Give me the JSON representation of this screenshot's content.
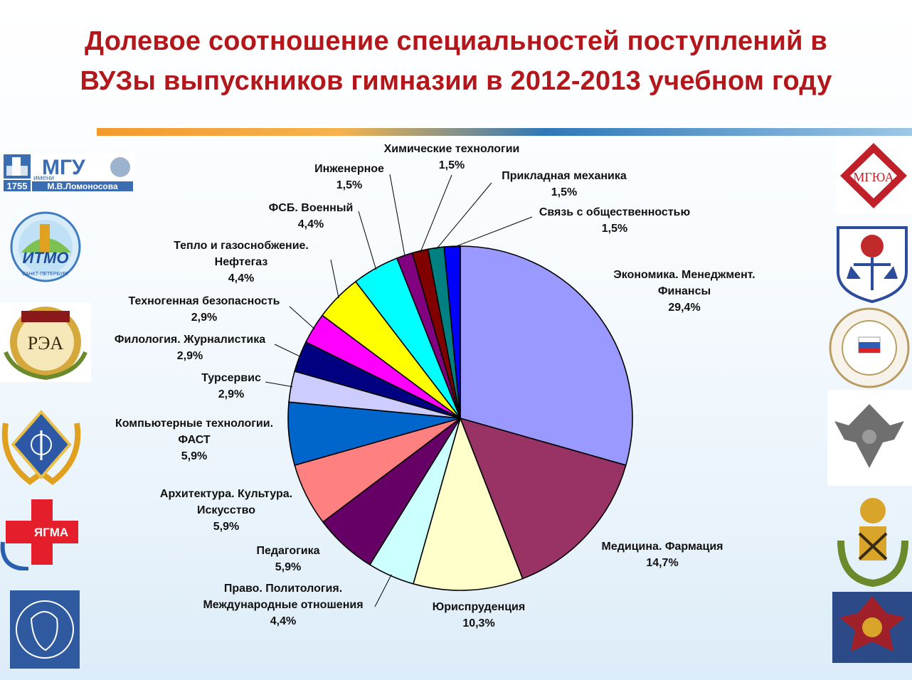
{
  "title": {
    "line1": "Долевое соотношение специальностей поступлений в",
    "line2": "ВУЗы выпускников гимназии в 2012-2013 учебном году"
  },
  "colors": {
    "title": "#b3171b"
  },
  "logos_left": [
    {
      "name": "msu-logo",
      "text": "МГУ",
      "sub": "имени",
      "sub2": "М.В.Ломоносова",
      "year": "1755"
    },
    {
      "name": "itmo-logo",
      "text": "ИТМО",
      "sub": "САНКТ-ПЕТЕРБУРГ"
    },
    {
      "name": "plekhanov-logo",
      "text": "РЭА"
    },
    {
      "name": "medical-academy-logo",
      "text": ""
    },
    {
      "name": "yagma-logo",
      "text": "ЯГМА"
    },
    {
      "name": "pushkin-logo",
      "text": ""
    }
  ],
  "logos_right": [
    {
      "name": "mgyua-logo",
      "text": "МГЮА"
    },
    {
      "name": "law-institute-logo",
      "text": ""
    },
    {
      "name": "finance-university-logo",
      "text": ""
    },
    {
      "name": "eagle-emblem-logo",
      "text": ""
    },
    {
      "name": "mining-university-logo",
      "text": ""
    },
    {
      "name": "fsb-academy-logo",
      "text": ""
    }
  ],
  "chart_data": {
    "type": "pie",
    "title": "Долевое соотношение специальностей поступлений в ВУЗы выпускников гимназии в 2012-2013 учебном году",
    "slices": [
      {
        "name": "Экономика. Менеджмент. Финансы",
        "value": 29.4,
        "label": "29,4%",
        "color": "#9999ff",
        "lines": [
          "Экономика. Менеджмент.",
          "Финансы",
          "29,4%"
        ]
      },
      {
        "name": "Медицина. Фармация",
        "value": 14.7,
        "label": "14,7%",
        "color": "#993366",
        "lines": [
          "Медицина. Фармация",
          "14,7%"
        ]
      },
      {
        "name": "Юриспруденция",
        "value": 10.3,
        "label": "10,3%",
        "color": "#ffffcc",
        "lines": [
          "Юриспруденция",
          "10,3%"
        ]
      },
      {
        "name": "Право. Политология. Международные отношения",
        "value": 4.4,
        "label": "4,4%",
        "color": "#ccffff",
        "lines": [
          "Право. Политология.",
          "Международные отношения",
          "4,4%"
        ]
      },
      {
        "name": "Педагогика",
        "value": 5.9,
        "label": "5,9%",
        "color": "#660066",
        "lines": [
          "Педагогика",
          "5,9%"
        ]
      },
      {
        "name": "Архитектура. Культура. Искусство",
        "value": 5.9,
        "label": "5,9%",
        "color": "#ff8080",
        "lines": [
          "Архитектура. Культура.",
          "Искусство",
          "5,9%"
        ]
      },
      {
        "name": "Компьютерные технологии. ФАСТ",
        "value": 5.9,
        "label": "5,9%",
        "color": "#0066cc",
        "lines": [
          "Компьютерные технологии.",
          "ФАСТ",
          "5,9%"
        ]
      },
      {
        "name": "Турсервис",
        "value": 2.9,
        "label": "2,9%",
        "color": "#ccccff",
        "lines": [
          "Турсервис",
          "2,9%"
        ]
      },
      {
        "name": "Филология. Журналистика",
        "value": 2.9,
        "label": "2,9%",
        "color": "#000080",
        "lines": [
          "Филология. Журналистика",
          "2,9%"
        ]
      },
      {
        "name": "Техногенная безопасность",
        "value": 2.9,
        "label": "2,9%",
        "color": "#ff00ff",
        "lines": [
          "Техногенная безопасность",
          "2,9%"
        ]
      },
      {
        "name": "Тепло и газоснобжение. Нефтегаз",
        "value": 4.4,
        "label": "4,4%",
        "color": "#ffff00",
        "lines": [
          "Тепло и газоснобжение.",
          "Нефтегаз",
          "4,4%"
        ]
      },
      {
        "name": "ФСБ. Военный",
        "value": 4.4,
        "label": "4,4%",
        "color": "#00ffff",
        "lines": [
          "ФСБ. Военный",
          "4,4%"
        ]
      },
      {
        "name": "Инженерное",
        "value": 1.5,
        "label": "1,5%",
        "color": "#800080",
        "lines": [
          "Инженерное",
          "1,5%"
        ]
      },
      {
        "name": "Химические технологии",
        "value": 1.5,
        "label": "1,5%",
        "color": "#800000",
        "lines": [
          "Химические технологии",
          "1,5%"
        ]
      },
      {
        "name": "Прикладная механика",
        "value": 1.5,
        "label": "1,5%",
        "color": "#008080",
        "lines": [
          "Прикладная механика",
          "1,5%"
        ]
      },
      {
        "name": "Связь с общественностью",
        "value": 1.5,
        "label": "1,5%",
        "color": "#0000ff",
        "lines": [
          "Связь с общественностью",
          "1,5%"
        ]
      }
    ],
    "start_angle": "12 o'clock",
    "direction": "clockwise",
    "legend": "none (callout labels)"
  }
}
